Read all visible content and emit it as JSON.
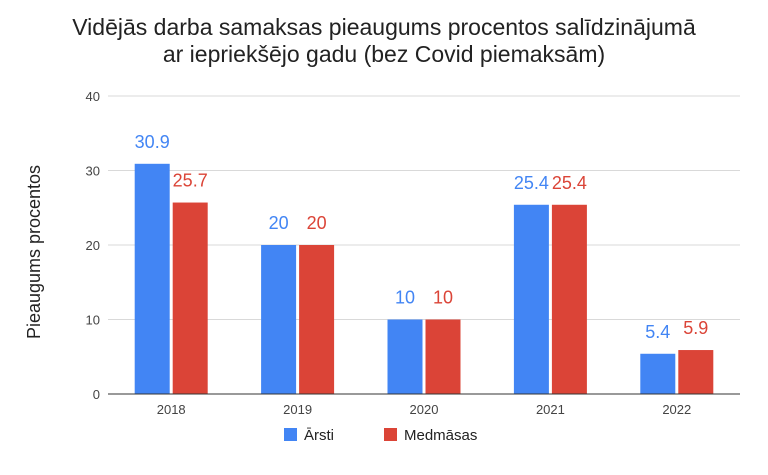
{
  "chart_data": {
    "type": "bar",
    "title_lines": [
      "Vidējās darba samaksas pieaugums procentos salīdzinājumā",
      "ar iepriekšējo gadu (bez Covid piemaksām)"
    ],
    "xlabel": "",
    "ylabel": "Pieaugums procentos",
    "categories": [
      "2018",
      "2019",
      "2020",
      "2021",
      "2022"
    ],
    "ylim": [
      0,
      40
    ],
    "yticks": [
      "0",
      "10",
      "20",
      "30",
      "40"
    ],
    "grid": true,
    "legend_position": "bottom",
    "series": [
      {
        "name": "Ārsti",
        "color": "#4285f4",
        "values": [
          30.9,
          20,
          10,
          25.4,
          5.4
        ],
        "labels": [
          "30.9",
          "20",
          "10",
          "25.4",
          "5.4"
        ]
      },
      {
        "name": "Medmāsas",
        "color": "#db4437",
        "values": [
          25.7,
          20,
          10,
          25.4,
          5.9
        ],
        "labels": [
          "25.7",
          "20",
          "10",
          "25.4",
          "5.9"
        ]
      }
    ]
  }
}
